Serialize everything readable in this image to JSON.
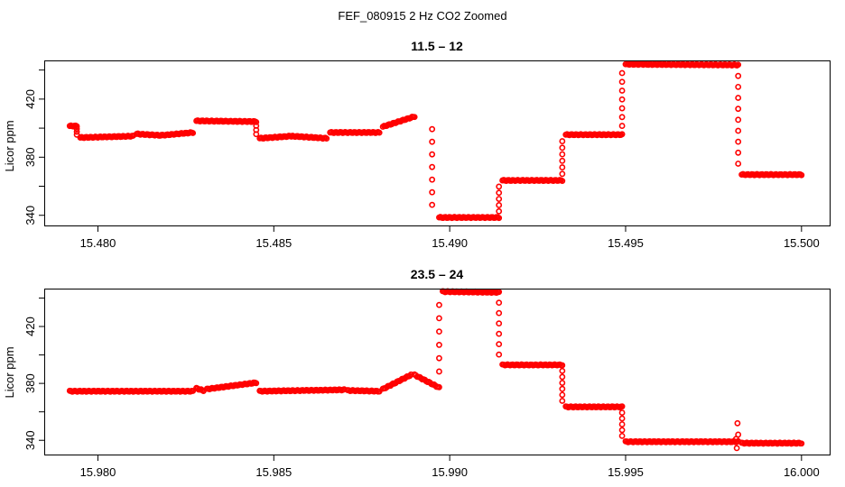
{
  "figure_title": "FEF_080915  2 Hz CO2 Zoomed",
  "chart_data": [
    {
      "type": "scatter",
      "title": "11.5 – 12",
      "xlabel": "",
      "ylabel": "Licor ppm",
      "xlim": [
        15.4785,
        15.5008
      ],
      "ylim": [
        333,
        446
      ],
      "xticks": [
        15.48,
        15.485,
        15.49,
        15.495,
        15.5
      ],
      "xtick_labels": [
        "15.480",
        "15.485",
        "15.490",
        "15.495",
        "15.500"
      ],
      "yticks": [
        340,
        360,
        380,
        400,
        420,
        440
      ],
      "ytick_labels": [
        "340",
        "",
        "380",
        "",
        "420",
        ""
      ],
      "marker": "open-circle",
      "color": "#ff0000",
      "grid": false,
      "segments": [
        [
          15.4792,
          15.4794,
          401.5,
          401.5
        ],
        [
          15.4795,
          15.481,
          393.5,
          394.5
        ],
        [
          15.4811,
          15.4818,
          396.0,
          395.0
        ],
        [
          15.4818,
          15.4827,
          395.0,
          397.0
        ],
        [
          15.4828,
          15.4845,
          405.0,
          404.5
        ],
        [
          15.4846,
          15.4855,
          393.0,
          394.5
        ],
        [
          15.4855,
          15.4865,
          394.5,
          393.0
        ],
        [
          15.4866,
          15.488,
          397.0,
          397.0
        ],
        [
          15.4881,
          15.489,
          401.0,
          408.0
        ],
        [
          15.4897,
          15.4914,
          338.5,
          338.5
        ],
        [
          15.4915,
          15.4932,
          364.0,
          364.0
        ],
        [
          15.4933,
          15.4949,
          395.5,
          395.5
        ],
        [
          15.495,
          15.4982,
          444.0,
          443.5
        ],
        [
          15.4983,
          15.5,
          368.0,
          368.0
        ]
      ],
      "transitions": [
        [
          15.4794,
          401.5,
          393.5,
          3
        ],
        [
          15.4845,
          404.5,
          393.0,
          3
        ],
        [
          15.4895,
          408.0,
          338.5,
          7
        ],
        [
          15.4914,
          338.5,
          364.0,
          5
        ],
        [
          15.4932,
          364.0,
          395.5,
          6
        ],
        [
          15.4949,
          395.5,
          444.0,
          7
        ],
        [
          15.4982,
          443.5,
          368.0,
          9
        ]
      ]
    },
    {
      "type": "scatter",
      "title": "23.5 – 24",
      "xlabel": "",
      "ylabel": "Licor ppm",
      "xlim": [
        15.9785,
        16.0008
      ],
      "ylim": [
        330,
        446
      ],
      "xticks": [
        15.98,
        15.985,
        15.99,
        15.995,
        16.0
      ],
      "xtick_labels": [
        "15.980",
        "15.985",
        "15.990",
        "15.995",
        "16.000"
      ],
      "yticks": [
        340,
        360,
        380,
        400,
        420,
        440
      ],
      "ytick_labels": [
        "340",
        "",
        "380",
        "",
        "420",
        ""
      ],
      "marker": "open-circle",
      "color": "#ff0000",
      "grid": false,
      "segments": [
        [
          15.9792,
          15.9827,
          374.5,
          374.5
        ],
        [
          15.9828,
          15.983,
          376.5,
          375.0
        ],
        [
          15.9831,
          15.9845,
          376.0,
          380.5
        ],
        [
          15.9846,
          15.987,
          374.5,
          375.5
        ],
        [
          15.9871,
          15.988,
          375.0,
          374.5
        ],
        [
          15.9881,
          15.9889,
          376.0,
          386.0
        ],
        [
          15.989,
          15.9897,
          386.0,
          377.0
        ],
        [
          15.9898,
          15.9914,
          444.5,
          444.0
        ],
        [
          15.9915,
          15.9932,
          393.0,
          393.0
        ],
        [
          15.9933,
          15.9949,
          363.5,
          363.5
        ],
        [
          15.995,
          15.9982,
          339.0,
          339.0
        ],
        [
          15.9983,
          16.0,
          338.0,
          338.0
        ]
      ],
      "transitions": [
        [
          15.9897,
          379.0,
          444.5,
          6
        ],
        [
          15.9914,
          444.0,
          393.0,
          6
        ],
        [
          15.9932,
          393.0,
          363.5,
          6
        ],
        [
          15.9949,
          363.5,
          339.0,
          5
        ]
      ],
      "outliers": [
        [
          15.99816,
          334.5
        ],
        [
          15.99818,
          352.0
        ],
        [
          15.99814,
          341.0
        ],
        [
          15.9982,
          344.0
        ]
      ]
    }
  ]
}
